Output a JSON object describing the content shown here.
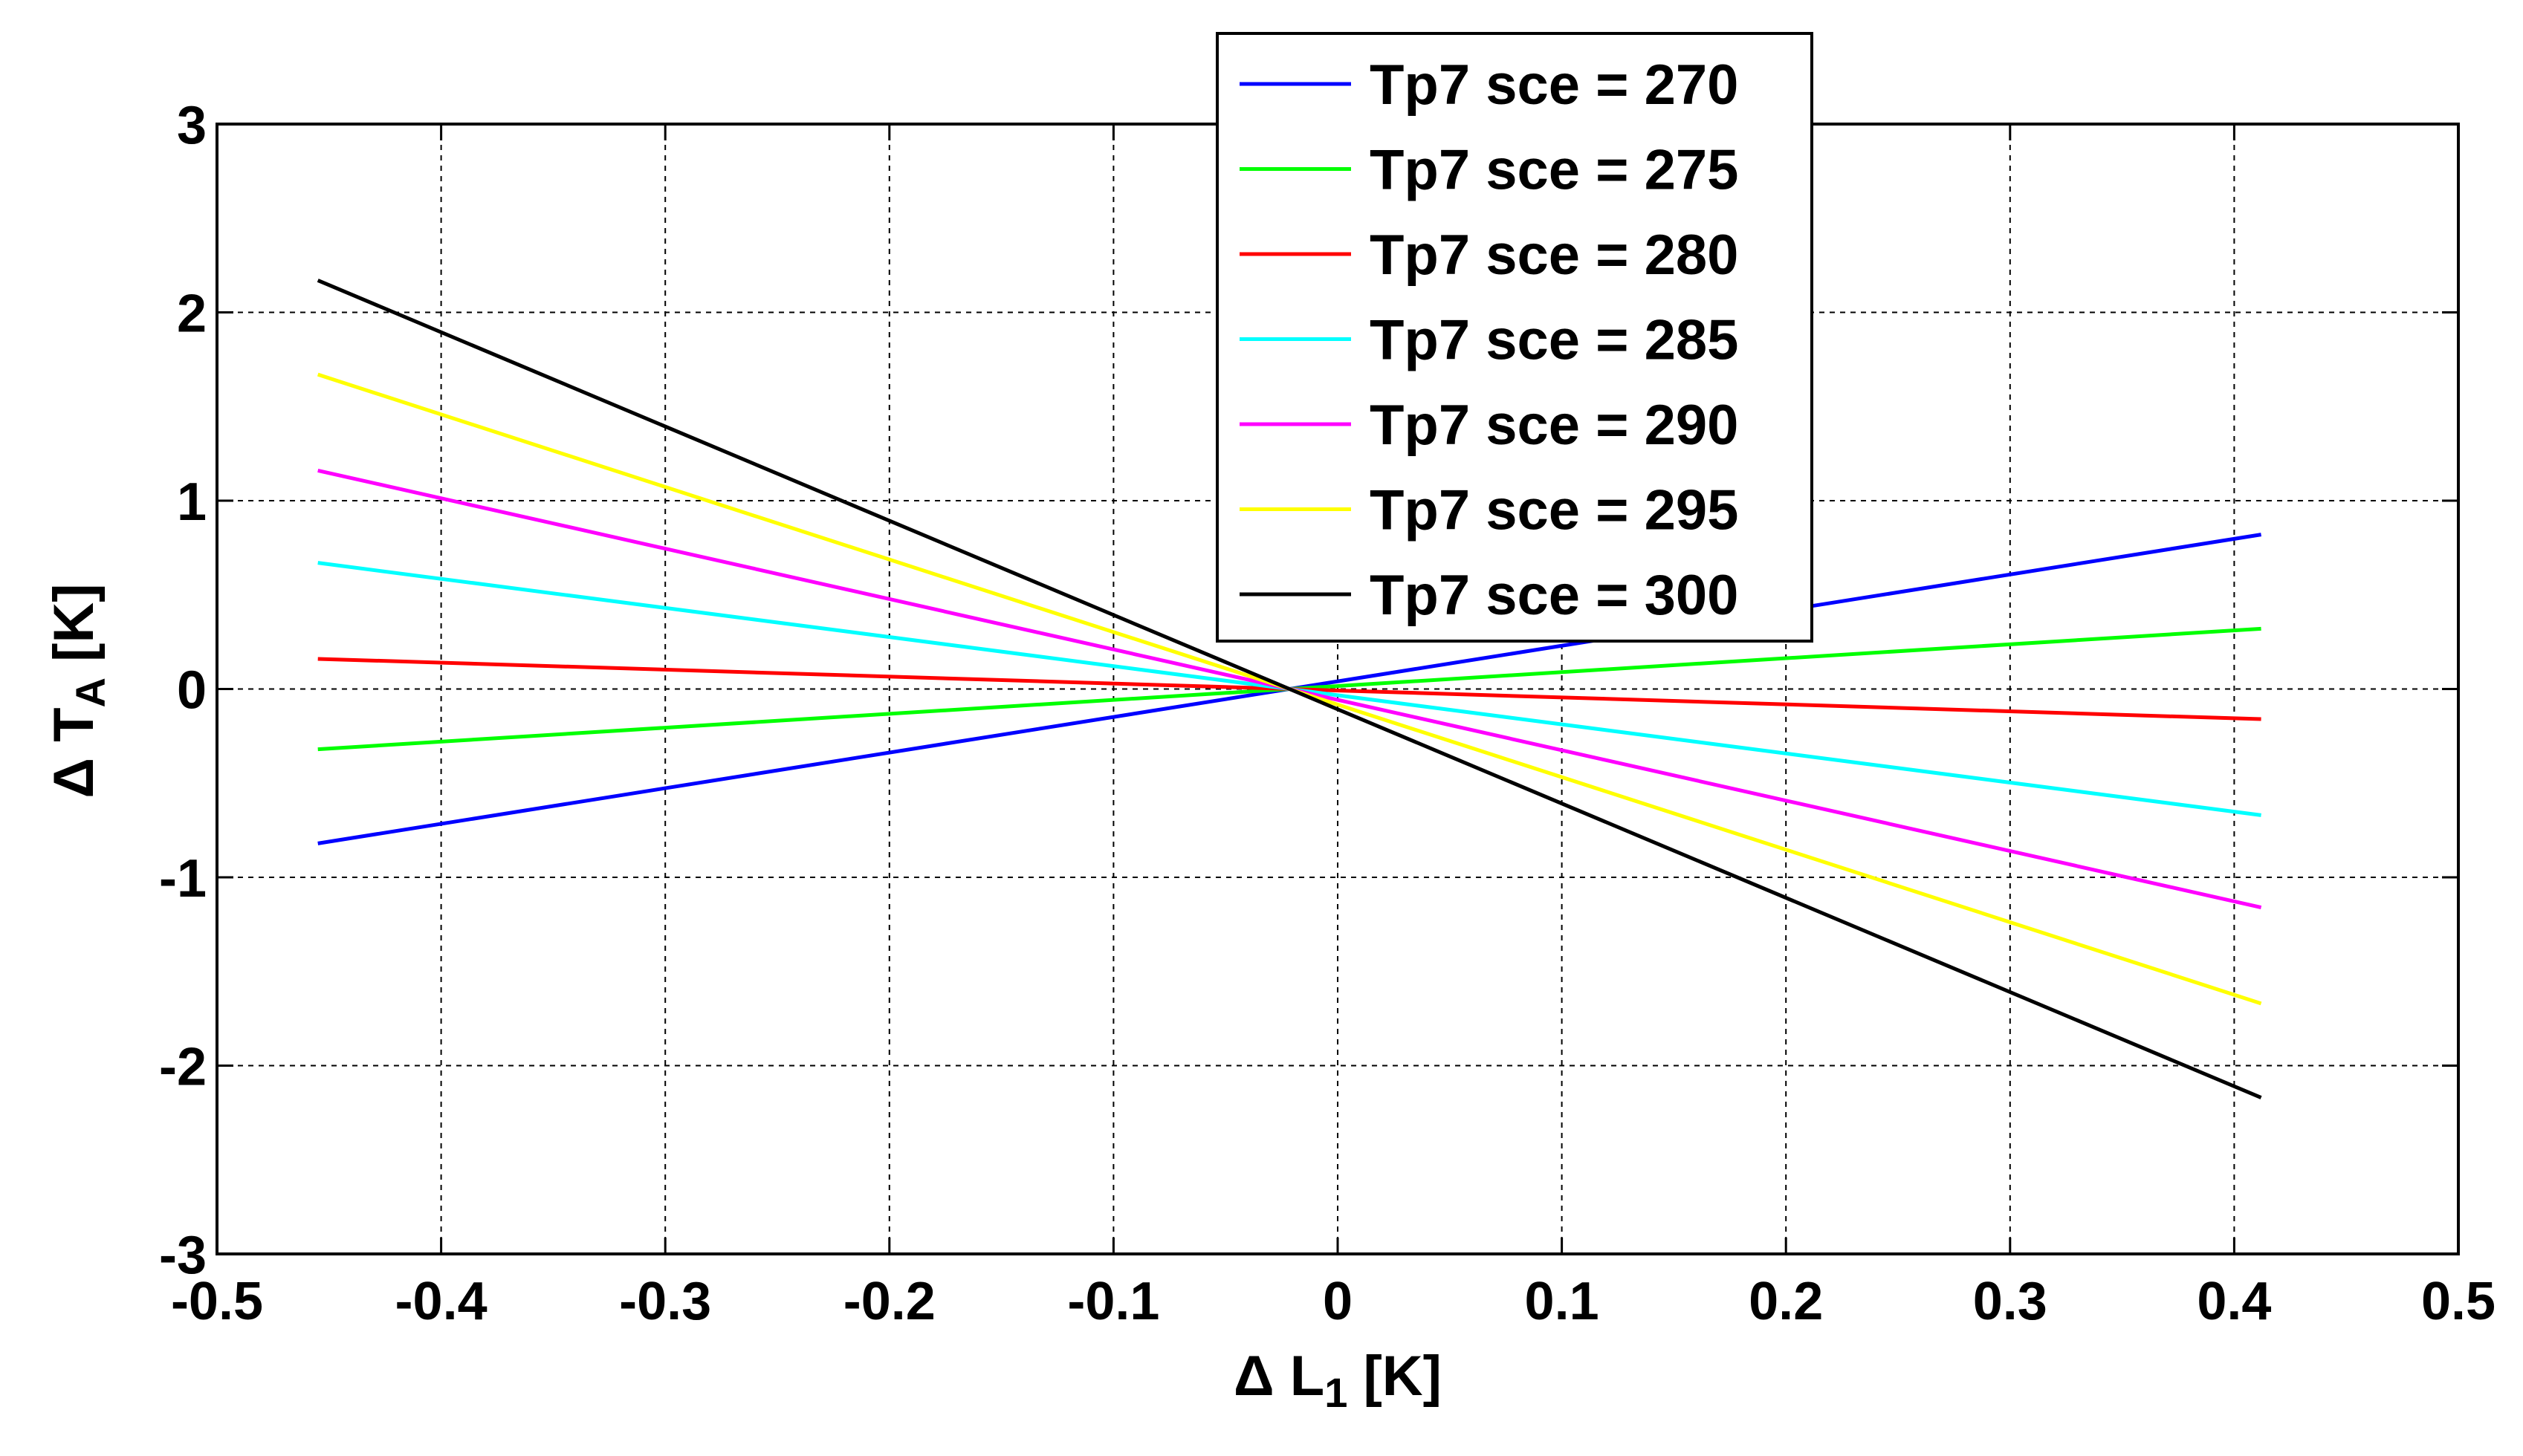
{
  "chart_data": {
    "type": "line",
    "title": "",
    "xlabel": {
      "prefix": "Δ L",
      "sub": "1",
      "suffix": " [K]"
    },
    "ylabel": {
      "prefix": "Δ T",
      "sub": "A",
      "suffix": " [K]"
    },
    "xlim": [
      -0.5,
      0.5
    ],
    "ylim": [
      -3,
      3
    ],
    "xticks": [
      -0.5,
      -0.4,
      -0.3,
      -0.2,
      -0.1,
      0,
      0.1,
      0.2,
      0.3,
      0.4,
      0.5
    ],
    "yticks": [
      -3,
      -2,
      -1,
      0,
      1,
      2,
      3
    ],
    "xtick_labels": [
      "-0.5",
      "-0.4",
      "-0.3",
      "-0.2",
      "-0.1",
      "0",
      "0.1",
      "0.2",
      "0.3",
      "0.4",
      "0.5"
    ],
    "ytick_labels": [
      "-3",
      "-2",
      "-1",
      "0",
      "1",
      "2",
      "3"
    ],
    "grid": true,
    "legend_position": "top-center",
    "series": [
      {
        "name": "Tp7 sce = 270",
        "color": "#0000ff",
        "x": [
          -0.455,
          0.412
        ],
        "y": [
          -0.82,
          0.82
        ]
      },
      {
        "name": "Tp7 sce = 275",
        "color": "#00ff00",
        "x": [
          -0.455,
          0.412
        ],
        "y": [
          -0.32,
          0.32
        ]
      },
      {
        "name": "Tp7 sce = 280",
        "color": "#ff0000",
        "x": [
          -0.455,
          0.412
        ],
        "y": [
          0.16,
          -0.16
        ]
      },
      {
        "name": "Tp7 sce = 285",
        "color": "#00ffff",
        "x": [
          -0.455,
          0.412
        ],
        "y": [
          0.67,
          -0.67
        ]
      },
      {
        "name": "Tp7 sce = 290",
        "color": "#ff00ff",
        "x": [
          -0.455,
          0.412
        ],
        "y": [
          1.16,
          -1.16
        ]
      },
      {
        "name": "Tp7 sce = 295",
        "color": "#ffff00",
        "x": [
          -0.455,
          0.412
        ],
        "y": [
          1.67,
          -1.67
        ]
      },
      {
        "name": "Tp7 sce = 300",
        "color": "#000000",
        "x": [
          -0.455,
          0.412
        ],
        "y": [
          2.17,
          -2.17
        ]
      }
    ]
  }
}
